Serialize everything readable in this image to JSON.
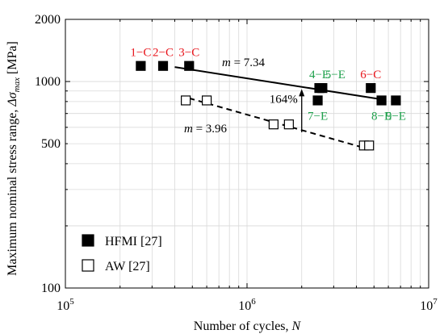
{
  "chart_data": {
    "type": "scatter",
    "title": "",
    "xlabel": "Number of cycles, ",
    "xlabel_var": "N",
    "ylabel": "Maximum nominal stress range, ",
    "ylabel_var": "Δσ",
    "ylabel_sub": "max",
    "ylabel_unit": " [MPa]",
    "x_scale": "log",
    "y_scale": "log",
    "xlim": [
      100000,
      10000000
    ],
    "ylim": [
      100,
      2000
    ],
    "grid": true,
    "legend_position": "bottom-left",
    "x_ticks": [
      {
        "value": 100000,
        "base": "10",
        "exp": "5"
      },
      {
        "value": 1000000,
        "base": "10",
        "exp": "6"
      },
      {
        "value": 10000000,
        "base": "10",
        "exp": "7"
      }
    ],
    "y_ticks": [
      {
        "value": 100,
        "label": "100"
      },
      {
        "value": 500,
        "label": "500"
      },
      {
        "value": 1000,
        "label": "1000"
      },
      {
        "value": 2000,
        "label": "2000"
      }
    ],
    "series": [
      {
        "name": "HFMI [27]",
        "marker": "filled-square",
        "points": [
          {
            "x": 260000,
            "y": 1190,
            "label": "1−C",
            "label_color": "#e8141b",
            "label_pos": "above"
          },
          {
            "x": 345000,
            "y": 1190,
            "label": "2−C",
            "label_color": "#e8141b",
            "label_pos": "above"
          },
          {
            "x": 480000,
            "y": 1190,
            "label": "3−C",
            "label_color": "#e8141b",
            "label_pos": "above"
          },
          {
            "x": 2500000,
            "y": 930,
            "label": "4−E",
            "label_color": "#1fa04c",
            "label_pos": "above"
          },
          {
            "x": 2600000,
            "y": 930,
            "label": "5−E",
            "label_color": "#1fa04c",
            "label_pos": "above-right"
          },
          {
            "x": 4800000,
            "y": 930,
            "label": "6−C",
            "label_color": "#e8141b",
            "label_pos": "above"
          },
          {
            "x": 2450000,
            "y": 810,
            "label": "7−E",
            "label_color": "#1fa04c",
            "label_pos": "below"
          },
          {
            "x": 5500000,
            "y": 810,
            "label": "8−E",
            "label_color": "#1fa04c",
            "label_pos": "below"
          },
          {
            "x": 6600000,
            "y": 810,
            "label": "9−E",
            "label_color": "#1fa04c",
            "label_pos": "below"
          }
        ]
      },
      {
        "name": "AW [27]",
        "marker": "open-square",
        "points": [
          {
            "x": 460000,
            "y": 810
          },
          {
            "x": 600000,
            "y": 810
          },
          {
            "x": 1400000,
            "y": 620
          },
          {
            "x": 1700000,
            "y": 620
          },
          {
            "x": 4400000,
            "y": 490
          },
          {
            "x": 4700000,
            "y": 490
          }
        ]
      }
    ],
    "fit_lines": [
      {
        "series": "HFMI [27]",
        "style": "solid",
        "x": [
          400000,
          5500000
        ],
        "y": [
          1175,
          820
        ],
        "label_prefix": "m",
        "label_value": " = 7.34"
      },
      {
        "series": "AW [27]",
        "style": "dashed",
        "x": [
          480000,
          4500000
        ],
        "y": [
          830,
          475
        ],
        "label_prefix": "m",
        "label_value": " = 3.96"
      }
    ],
    "annotation": {
      "text": "164%",
      "x": 2000000,
      "y_from": 568,
      "y_to": 920
    },
    "colors": {
      "red_label": "#e8141b",
      "green_label": "#1fa04c",
      "marker": "#000000"
    }
  }
}
